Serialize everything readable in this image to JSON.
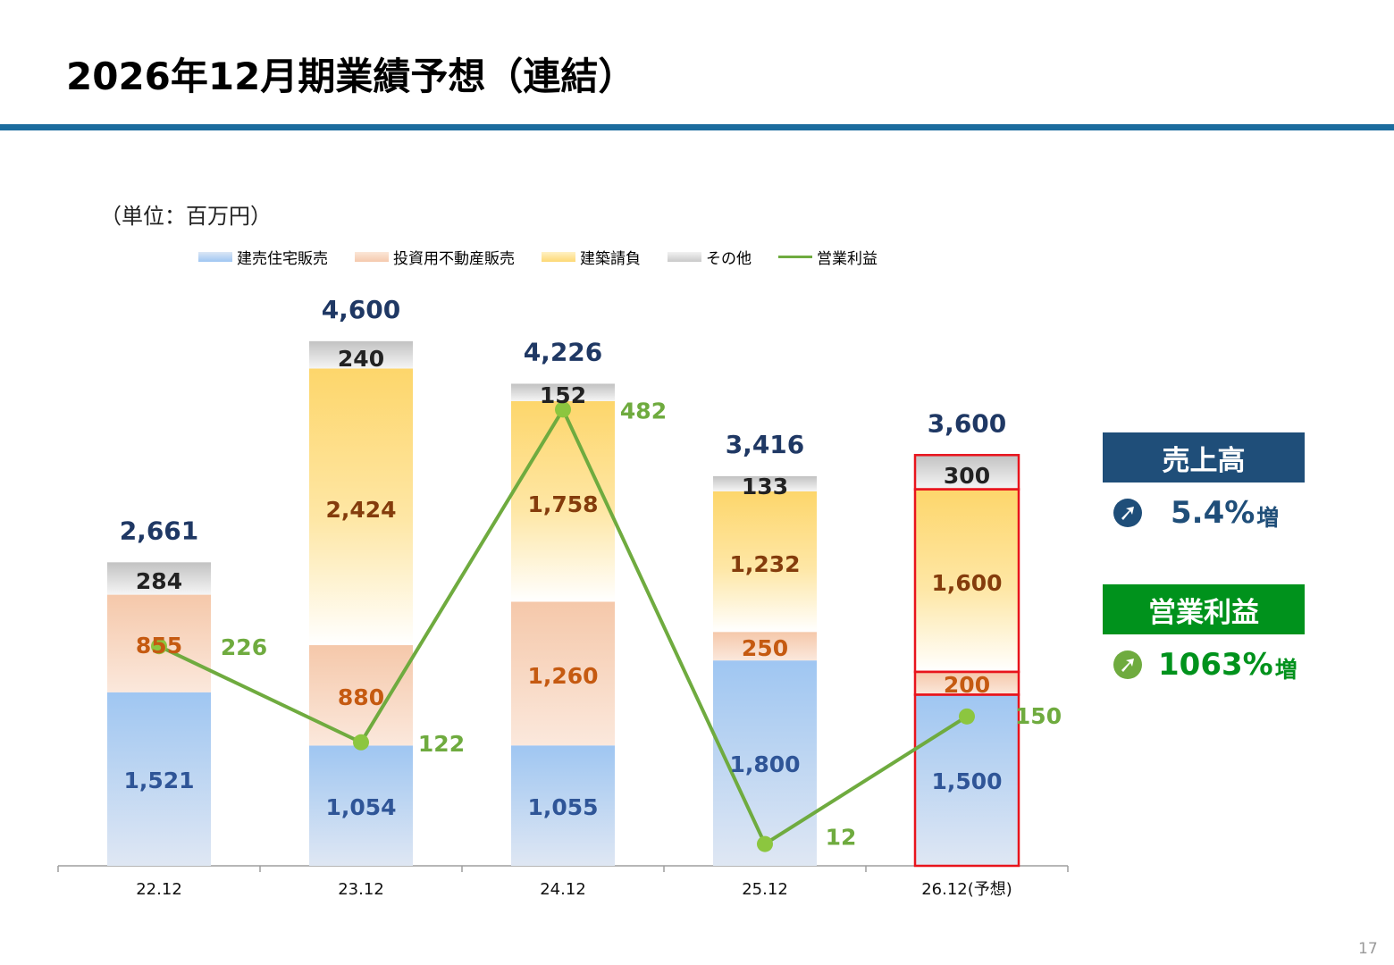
{
  "page": {
    "title": "2026年12月期業績予想（連結）",
    "unit_label": "（単位：百万円）",
    "page_number": "17"
  },
  "legend": [
    {
      "label": "建売住宅販売",
      "kind": "bar",
      "color": "#9fc6f2"
    },
    {
      "label": "投資用不動産販売",
      "kind": "bar",
      "color": "#f5c9ad"
    },
    {
      "label": "建築請負",
      "kind": "bar",
      "color": "#fdd874"
    },
    {
      "label": "その他",
      "kind": "bar",
      "color": "#d3d3d3"
    },
    {
      "label": "営業利益",
      "kind": "line",
      "color": "#6fab3f"
    }
  ],
  "kpis": {
    "sales": {
      "label": "売上高",
      "value": "5.4%",
      "suffix": "増",
      "icon": "arrow-up-right-circle-icon",
      "color": "#1f4e79"
    },
    "operating_profit": {
      "label": "営業利益",
      "value": "1063%",
      "suffix": "増",
      "icon": "arrow-up-right-circle-icon",
      "color": "#00921c"
    }
  },
  "chart_data": {
    "type": "bar",
    "stacked": true,
    "categories": [
      "22.12",
      "23.12",
      "24.12",
      "25.12",
      "26.12(予想)"
    ],
    "series": [
      {
        "name": "建売住宅販売",
        "values": [
          1521,
          1054,
          1055,
          1800,
          1500
        ],
        "labels": [
          "1,521",
          "1,054",
          "1,055",
          "1,800",
          "1,500"
        ],
        "color": "#9fc6f2",
        "label_color": "#2f5597"
      },
      {
        "name": "投資用不動産販売",
        "values": [
          855,
          880,
          1260,
          250,
          200
        ],
        "labels": [
          "855",
          "880",
          "1,260",
          "250",
          "200"
        ],
        "color": "#f5c9ad",
        "label_color": "#c55a11"
      },
      {
        "name": "建築請負",
        "values": [
          0,
          2424,
          1758,
          1232,
          1600
        ],
        "labels": [
          "",
          "2,424",
          "1,758",
          "1,232",
          "1,600"
        ],
        "color": "#fdd874",
        "label_color": "#843c0c"
      },
      {
        "name": "その他",
        "values": [
          284,
          240,
          152,
          133,
          300
        ],
        "labels": [
          "284",
          "240",
          "152",
          "133",
          "300"
        ],
        "color": "#d3d3d3",
        "label_color": "#222222"
      }
    ],
    "totals": [
      2661,
      4600,
      4226,
      3416,
      3600
    ],
    "total_labels": [
      "2,661",
      "4,600",
      "4,226",
      "3,416",
      "3,600"
    ],
    "line_series": {
      "name": "営業利益",
      "values": [
        226,
        122,
        482,
        12,
        150
      ],
      "labels": [
        "226",
        "122",
        "482",
        "12",
        "150"
      ],
      "color": "#6fab3f"
    },
    "highlighted_category": "26.12(予想)",
    "highlight_color": "#e8141c",
    "total_label_color": "#1f3864",
    "legend_position": "top",
    "grid": false
  }
}
